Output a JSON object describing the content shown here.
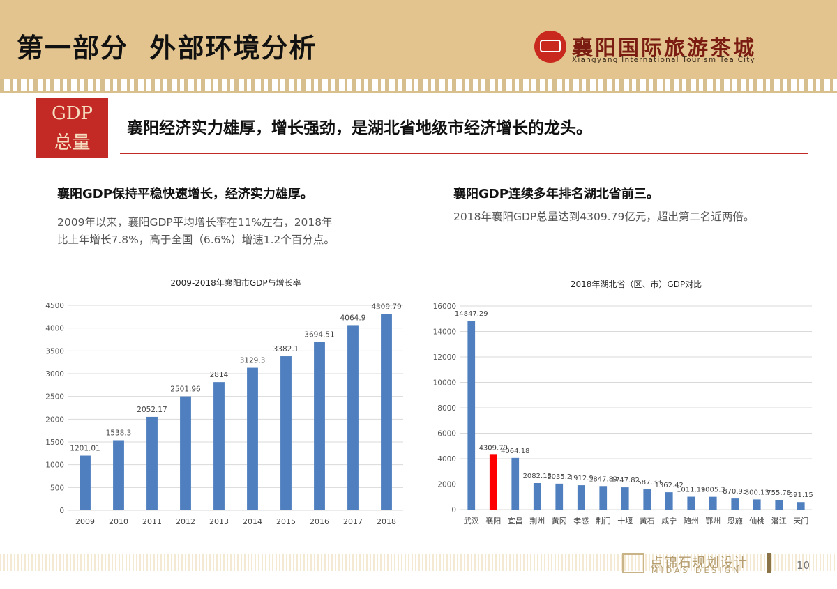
{
  "header": {
    "title": "第一部分  外部环境分析",
    "logo_cn": "襄阳国际旅游茶城",
    "logo_en": "Xiangyang International Tourism Tea City"
  },
  "badge": {
    "line1": "GDP",
    "line2": "总量"
  },
  "headline": "襄阳经济实力雄厚，增长强劲，是湖北省地级市经济增长的龙头。",
  "left": {
    "subtitle": "襄阳GDP保持平稳快速增长，经济实力雄厚。",
    "body_line1": "2009年以来，襄阳GDP平均增长率在11%左右，2018年",
    "body_line2": "比上年增长7.8%，高于全国（6.6%）增速1.2个百分点。"
  },
  "right": {
    "subtitle": "襄阳GDP连续多年排名湖北省前三。",
    "body": "2018年襄阳GDP总量达到4309.79亿元，超出第二名近两倍。"
  },
  "footer": {
    "logo_cn": "点锦石规划设计",
    "logo_en": "MIDAS DESIGN",
    "page": "10"
  },
  "chart_data": [
    {
      "type": "bar",
      "title": "2009-2018年襄阳市GDP与增长率",
      "categories": [
        "2009",
        "2010",
        "2011",
        "2012",
        "2013",
        "2014",
        "2015",
        "2016",
        "2017",
        "2018"
      ],
      "values": [
        1201.01,
        1538.3,
        2052.17,
        2501.96,
        2814,
        3129.3,
        3382.1,
        3694.51,
        4064.9,
        4309.79
      ],
      "labels": [
        "1201.01",
        "1538.3",
        "2052.17",
        "2501.96",
        "2814",
        "3129.3",
        "3382.1",
        "3694.51",
        "4064.9",
        "4309.79"
      ],
      "ylim": [
        0,
        4500
      ],
      "yticks": [
        "0",
        "500",
        "1000",
        "1500",
        "2000",
        "2500",
        "3000",
        "3500",
        "4000",
        "4500"
      ],
      "grid": true,
      "bar_color": "#4f7fbf"
    },
    {
      "type": "bar",
      "title": "2018年湖北省（区、市）GDP对比",
      "categories": [
        "武汉",
        "襄阳",
        "宜昌",
        "荆州",
        "黄冈",
        "孝感",
        "荆门",
        "十堰",
        "黄石",
        "咸宁",
        "随州",
        "鄂州",
        "恩施",
        "仙桃",
        "潜江",
        "天门"
      ],
      "values": [
        14847.29,
        4309.79,
        4064.18,
        2082.18,
        2035.2,
        1912.9,
        1847.89,
        1747.82,
        1587.33,
        1362.42,
        1011.19,
        1005.3,
        870.95,
        800.13,
        755.78,
        591.15
      ],
      "labels": [
        "14847.29",
        "4309.79",
        "4064.18",
        "2082.18",
        "2035.2",
        "1912.9",
        "1847.89",
        "1747.82",
        "1587.33",
        "1362.42",
        "1011.19",
        "1005.3",
        "870.95",
        "800.13",
        "755.78",
        "591.15"
      ],
      "ylim": [
        0,
        16000
      ],
      "yticks": [
        "0",
        "2000",
        "4000",
        "6000",
        "8000",
        "10000",
        "12000",
        "14000",
        "16000"
      ],
      "grid": true,
      "bar_color": "#4f7fbf",
      "highlight_color": "#ff0000",
      "highlight_index": 1
    }
  ]
}
